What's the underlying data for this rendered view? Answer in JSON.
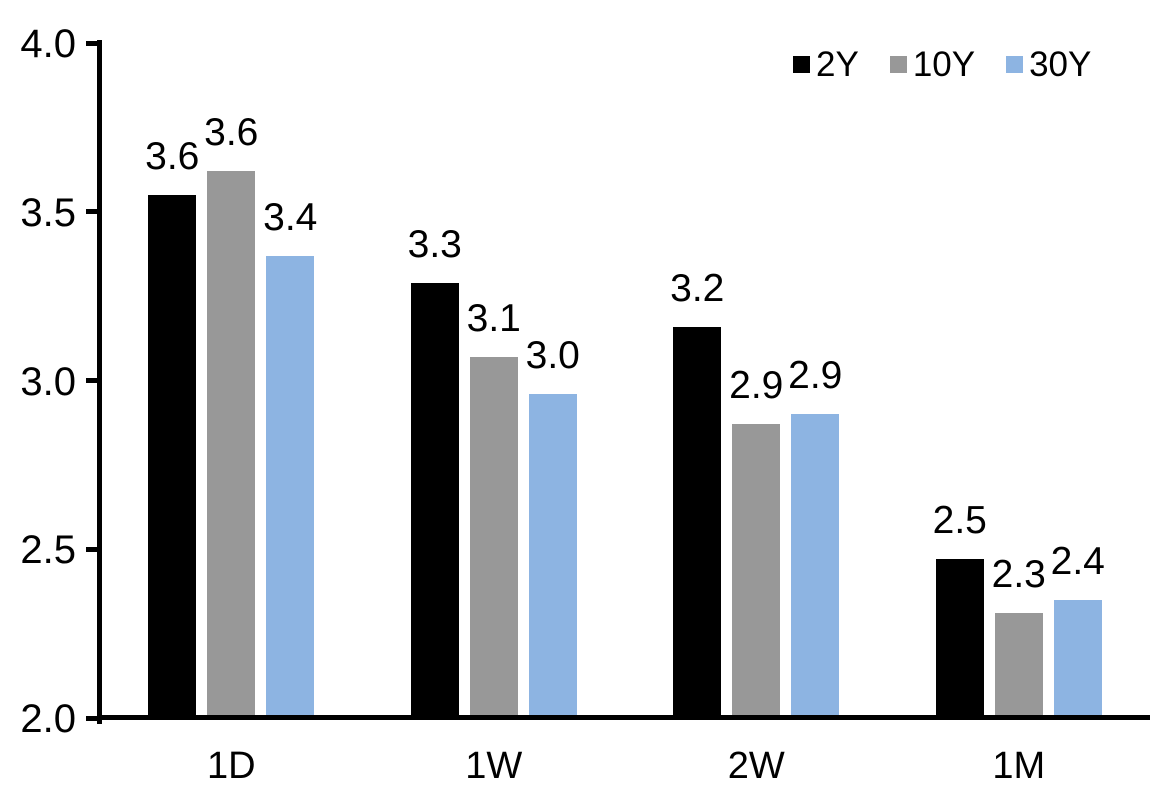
{
  "chart_data": {
    "type": "bar",
    "title": "",
    "xlabel": "",
    "ylabel": "",
    "categories": [
      "1D",
      "1W",
      "2W",
      "1M"
    ],
    "series": [
      {
        "name": "2Y",
        "color": "#000000",
        "values": [
          3.55,
          3.29,
          3.16,
          2.47
        ],
        "labels": [
          "3.6",
          "3.3",
          "3.2",
          "2.5"
        ]
      },
      {
        "name": "10Y",
        "color": "#989898",
        "values": [
          3.62,
          3.07,
          2.87,
          2.31
        ],
        "labels": [
          "3.6",
          "3.1",
          "2.9",
          "2.3"
        ]
      },
      {
        "name": "30Y",
        "color": "#8DB4E2",
        "values": [
          3.37,
          2.96,
          2.9,
          2.35
        ],
        "labels": [
          "3.4",
          "3.0",
          "2.9",
          "2.4"
        ]
      }
    ],
    "ylim": [
      2.0,
      4.0
    ],
    "ytick_values": [
      4.0,
      3.5,
      3.0,
      2.5,
      2.0
    ],
    "ytick_labels": [
      "4.0",
      "3.5",
      "3.0",
      "2.5",
      "2.0"
    ],
    "grid": false,
    "legend_position": "top-right",
    "axis_color": "#000000",
    "label_color": "#000000"
  }
}
